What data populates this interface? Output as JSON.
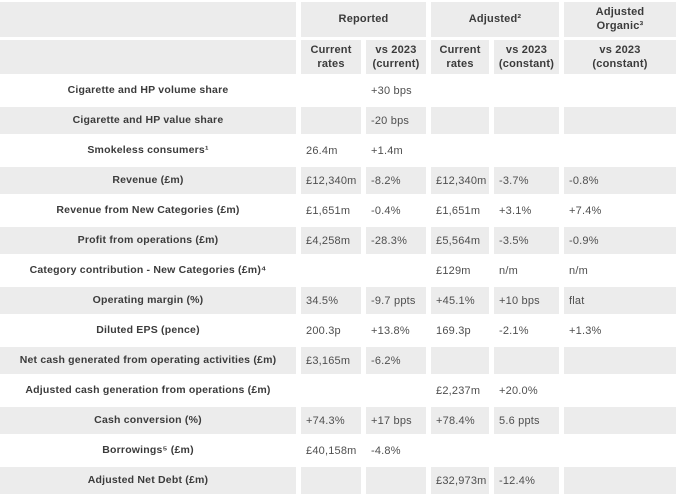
{
  "table": {
    "colors": {
      "cell_gray": "#ececec",
      "label_text": "#3b3b3b",
      "value_text": "#4f4f4f",
      "background": "#ffffff"
    },
    "group_headers": {
      "reported": "Reported",
      "adjusted": "Adjusted²",
      "adjusted_organic": "Adjusted\nOrganic³"
    },
    "col_headers": {
      "reported_current": "Current\nrates",
      "reported_vs": "vs 2023\n(current)",
      "adjusted_current": "Current\nrates",
      "adjusted_vs": "vs 2023\n(constant)",
      "organic_vs": "vs 2023\n(constant)"
    },
    "rows": [
      {
        "label": "Cigarette and HP volume share",
        "cells": [
          "",
          "+30 bps",
          "",
          "",
          ""
        ]
      },
      {
        "label": "Cigarette and HP value share",
        "cells": [
          "",
          "-20 bps",
          "",
          "",
          ""
        ]
      },
      {
        "label": "Smokeless consumers¹",
        "cells": [
          "26.4m",
          "+1.4m",
          "",
          "",
          ""
        ]
      },
      {
        "label": "Revenue (£m)",
        "cells": [
          "£12,340m",
          "-8.2%",
          "£12,340m",
          "-3.7%",
          "-0.8%"
        ]
      },
      {
        "label": "Revenue from New Categories (£m)",
        "cells": [
          "£1,651m",
          "-0.4%",
          "£1,651m",
          "+3.1%",
          "+7.4%"
        ]
      },
      {
        "label": "Profit from operations (£m)",
        "cells": [
          "£4,258m",
          "-28.3%",
          "£5,564m",
          "-3.5%",
          "-0.9%"
        ]
      },
      {
        "label": "Category contribution - New Categories (£m)⁴",
        "cells": [
          "",
          "",
          "£129m",
          "n/m",
          "n/m"
        ]
      },
      {
        "label": "Operating margin (%)",
        "cells": [
          "34.5%",
          "-9.7 ppts",
          "+45.1%",
          "+10 bps",
          "flat"
        ]
      },
      {
        "label": "Diluted EPS (pence)",
        "cells": [
          "200.3p",
          "+13.8%",
          "169.3p",
          "-2.1%",
          "+1.3%"
        ]
      },
      {
        "label": "Net cash generated from operating activities (£m)",
        "cells": [
          "£3,165m",
          "-6.2%",
          "",
          "",
          ""
        ]
      },
      {
        "label": "Adjusted cash generation from operations (£m)",
        "cells": [
          "",
          "",
          "£2,237m",
          "+20.0%",
          ""
        ]
      },
      {
        "label": "Cash conversion (%)",
        "cells": [
          "+74.3%",
          "+17 bps",
          "+78.4%",
          "5.6 ppts",
          ""
        ]
      },
      {
        "label": "Borrowings⁵ (£m)",
        "cells": [
          "£40,158m",
          "-4.8%",
          "",
          "",
          ""
        ]
      },
      {
        "label": "Adjusted Net Debt (£m)",
        "cells": [
          "",
          "",
          "£32,973m",
          "-12.4%",
          ""
        ]
      }
    ]
  }
}
